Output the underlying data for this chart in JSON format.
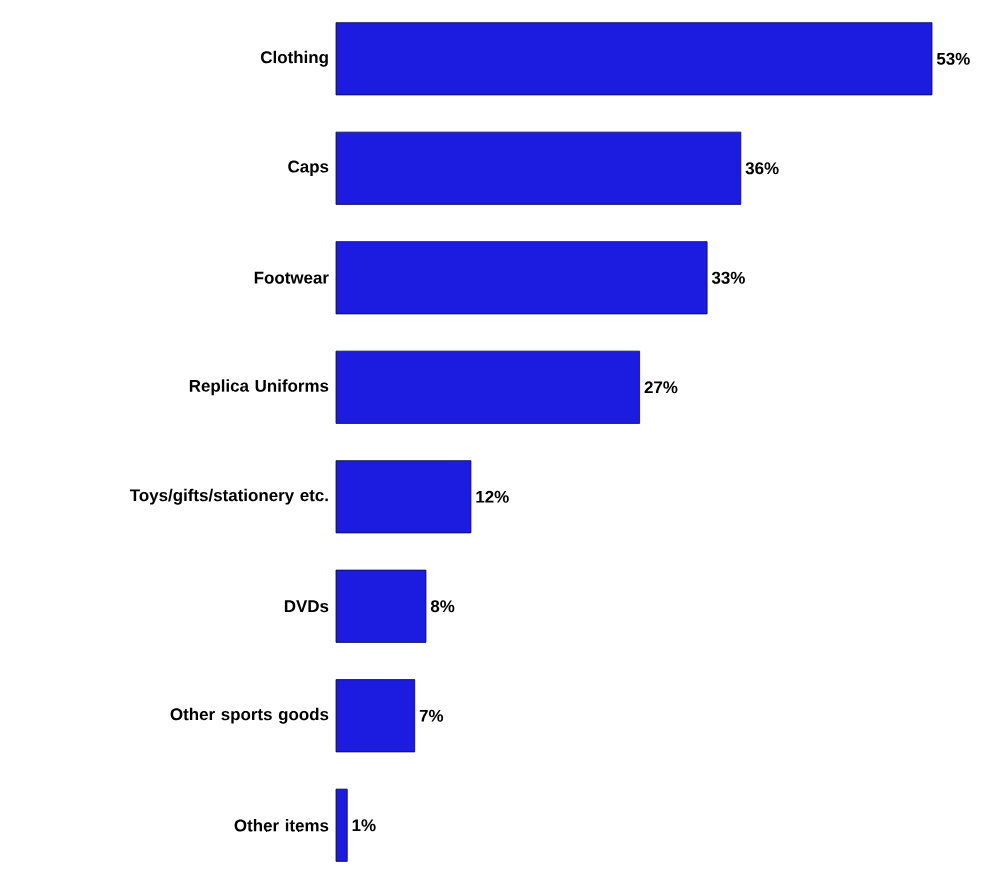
{
  "chart_data": {
    "type": "bar",
    "orientation": "horizontal",
    "categories": [
      "Clothing",
      "Caps",
      "Footwear",
      "Replica Uniforms",
      "Toys/gifts/stationery etc.",
      "DVDs",
      "Other sports goods",
      "Other items"
    ],
    "values": [
      53,
      36,
      33,
      27,
      12,
      8,
      7,
      1
    ],
    "value_labels": [
      "53%",
      "36%",
      "33%",
      "27%",
      "12%",
      "8%",
      "7%",
      "1%"
    ],
    "color": "#1c1ce0"
  }
}
